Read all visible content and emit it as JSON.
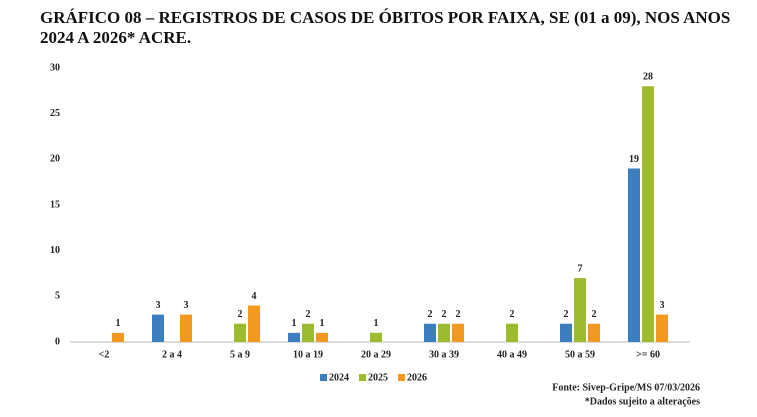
{
  "chart_data": {
    "type": "bar",
    "title": "GRÁFICO 08 – REGISTROS DE CASOS DE ÓBITOS POR FAIXA, SE (01 a 09), NOS ANOS 2024 A 2026* ACRE.",
    "categories": [
      "<2",
      "2 a 4",
      "5 a 9",
      "10 a 19",
      "20 a 29",
      "30 a 39",
      "40 a 49",
      "50 a 59",
      ">= 60"
    ],
    "series": [
      {
        "name": "2024",
        "color": "#3b7fc0",
        "values": [
          null,
          3,
          null,
          1,
          null,
          2,
          null,
          2,
          19
        ]
      },
      {
        "name": "2025",
        "color": "#9dbb2f",
        "values": [
          null,
          null,
          2,
          2,
          1,
          2,
          2,
          7,
          28
        ]
      },
      {
        "name": "2026",
        "color": "#f39a1e",
        "values": [
          1,
          3,
          4,
          1,
          null,
          2,
          null,
          2,
          3
        ]
      }
    ],
    "ylim": [
      0,
      30
    ],
    "yticks": [
      0,
      5,
      10,
      15,
      20,
      25,
      30
    ],
    "grid": false,
    "legend": "bottom",
    "source": "Fonte: Sivep-Gripe/MS 07/03/2026",
    "note": "*Dados sujeito a alterações"
  }
}
